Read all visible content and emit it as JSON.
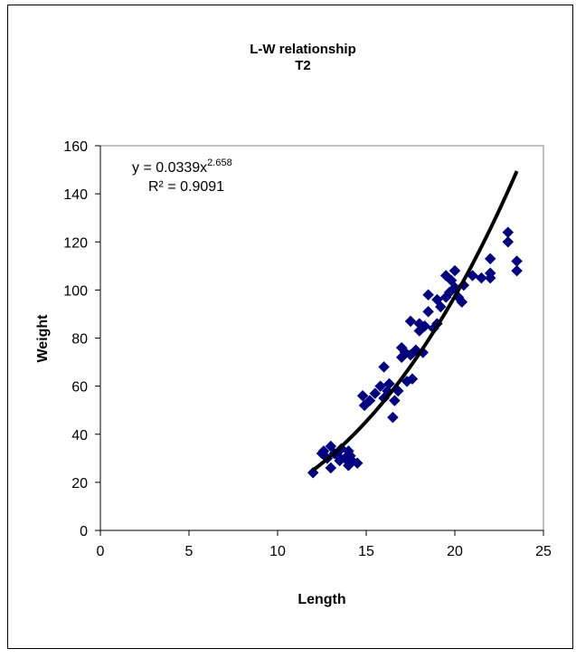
{
  "chart_data": {
    "type": "scatter",
    "title": "L-W relationship",
    "subtitle": "T2",
    "xlabel": "Length",
    "ylabel": "Weight",
    "xlim": [
      0,
      25
    ],
    "ylim": [
      0,
      160
    ],
    "xticks": [
      0,
      5,
      10,
      15,
      20,
      25
    ],
    "yticks": [
      0,
      20,
      40,
      60,
      80,
      100,
      120,
      140,
      160
    ],
    "grid": false,
    "legend": "none",
    "marker": "diamond",
    "marker_color": "#000080",
    "trendline_color": "#000000",
    "series": [
      {
        "points": [
          [
            12.0,
            24
          ],
          [
            12.5,
            32
          ],
          [
            12.6,
            33
          ],
          [
            12.8,
            30
          ],
          [
            13.0,
            35
          ],
          [
            13.0,
            26
          ],
          [
            13.2,
            32
          ],
          [
            13.4,
            31
          ],
          [
            13.5,
            29
          ],
          [
            13.6,
            34
          ],
          [
            13.8,
            30
          ],
          [
            14.0,
            33
          ],
          [
            14.0,
            27
          ],
          [
            14.1,
            31
          ],
          [
            14.2,
            29
          ],
          [
            14.5,
            28
          ],
          [
            14.8,
            56
          ],
          [
            14.9,
            52
          ],
          [
            15.2,
            54
          ],
          [
            15.5,
            57
          ],
          [
            15.8,
            60
          ],
          [
            16.0,
            68
          ],
          [
            16.0,
            55
          ],
          [
            16.2,
            58
          ],
          [
            16.3,
            61
          ],
          [
            16.5,
            47
          ],
          [
            16.6,
            54
          ],
          [
            16.8,
            58
          ],
          [
            17.0,
            72
          ],
          [
            17.0,
            76
          ],
          [
            17.2,
            74
          ],
          [
            17.3,
            62
          ],
          [
            17.5,
            87
          ],
          [
            17.5,
            73
          ],
          [
            17.6,
            63
          ],
          [
            17.8,
            75
          ],
          [
            18.0,
            83
          ],
          [
            18.0,
            86
          ],
          [
            18.2,
            74
          ],
          [
            18.3,
            85
          ],
          [
            18.5,
            98
          ],
          [
            18.5,
            91
          ],
          [
            18.8,
            84
          ],
          [
            19.0,
            96
          ],
          [
            19.0,
            86
          ],
          [
            19.2,
            93
          ],
          [
            19.5,
            106
          ],
          [
            19.5,
            97
          ],
          [
            19.7,
            99
          ],
          [
            19.8,
            104
          ],
          [
            20.0,
            108
          ],
          [
            20.0,
            101
          ],
          [
            20.2,
            97
          ],
          [
            20.4,
            95
          ],
          [
            20.5,
            102
          ],
          [
            21.0,
            106
          ],
          [
            21.5,
            105
          ],
          [
            22.0,
            113
          ],
          [
            22.0,
            107
          ],
          [
            22.0,
            105
          ],
          [
            23.0,
            124
          ],
          [
            23.0,
            120
          ],
          [
            23.5,
            112
          ],
          [
            23.5,
            108
          ]
        ]
      }
    ],
    "trendline": {
      "type": "power",
      "a": 0.0339,
      "b": 2.658,
      "x_range": [
        12,
        23.5
      ],
      "equation_prefix": "y = 0.0339x",
      "equation_exponent": "2.658",
      "r_squared_label": "R² = 0.9091"
    }
  }
}
